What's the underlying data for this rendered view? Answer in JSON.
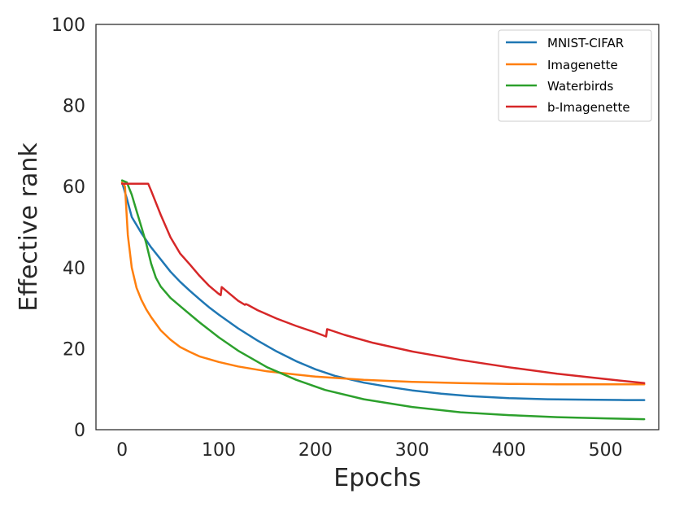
{
  "chart_data": {
    "type": "line",
    "title": "",
    "xlabel": "Epochs",
    "ylabel": "Effective rank",
    "xlim": [
      -27,
      555
    ],
    "ylim": [
      0,
      100
    ],
    "xticks": [
      0,
      100,
      200,
      300,
      400,
      500
    ],
    "yticks": [
      0,
      20,
      40,
      60,
      80,
      100
    ],
    "grid": false,
    "legend_position": "top-right",
    "series": [
      {
        "name": "MNIST-CIFAR",
        "color": "#1f77b4",
        "x": [
          0,
          5,
          10,
          20,
          30,
          40,
          50,
          60,
          70,
          80,
          90,
          100,
          120,
          140,
          160,
          180,
          200,
          220,
          250,
          280,
          300,
          330,
          360,
          400,
          440,
          480,
          520,
          540
        ],
        "y": [
          61,
          57,
          52.5,
          48.5,
          45,
          42,
          39,
          36.5,
          34.3,
          32.2,
          30.2,
          28.4,
          25,
          22,
          19.3,
          16.9,
          14.9,
          13.3,
          11.6,
          10.4,
          9.7,
          8.9,
          8.3,
          7.8,
          7.5,
          7.4,
          7.3,
          7.3
        ]
      },
      {
        "name": "Imagenette",
        "color": "#ff7f0e",
        "x": [
          0,
          3,
          6,
          10,
          15,
          20,
          25,
          30,
          40,
          50,
          60,
          70,
          80,
          100,
          120,
          150,
          180,
          200,
          250,
          300,
          350,
          400,
          450,
          500,
          540
        ],
        "y": [
          61,
          60,
          48,
          40,
          35,
          32,
          29.7,
          27.8,
          24.5,
          22.2,
          20.4,
          19.2,
          18.1,
          16.7,
          15.6,
          14.4,
          13.6,
          13.1,
          12.3,
          11.8,
          11.5,
          11.3,
          11.2,
          11.2,
          11.2
        ]
      },
      {
        "name": "Waterbirds",
        "color": "#2ca02c",
        "x": [
          0,
          5,
          10,
          15,
          20,
          25,
          30,
          35,
          40,
          50,
          60,
          80,
          100,
          120,
          150,
          180,
          210,
          250,
          300,
          350,
          400,
          450,
          500,
          540
        ],
        "y": [
          61.5,
          61,
          58,
          54,
          50,
          46,
          41,
          37.5,
          35.3,
          32.5,
          30.5,
          26.5,
          22.8,
          19.5,
          15.4,
          12.3,
          9.8,
          7.5,
          5.6,
          4.3,
          3.6,
          3.1,
          2.8,
          2.6
        ]
      },
      {
        "name": "b-Imagenette",
        "color": "#d62728",
        "x": [
          0,
          10,
          20,
          27,
          30,
          35,
          40,
          50,
          60,
          70,
          80,
          90,
          100,
          102,
          103,
          110,
          120,
          127,
          128,
          130,
          140,
          160,
          180,
          200,
          211,
          212,
          215,
          230,
          260,
          300,
          350,
          400,
          450,
          500,
          540
        ],
        "y": [
          60.7,
          60.7,
          60.7,
          60.7,
          59,
          56,
          53,
          47.5,
          43.5,
          40.8,
          38,
          35.5,
          33.5,
          33.2,
          35.2,
          33.8,
          31.8,
          30.8,
          31,
          30.8,
          29.5,
          27.4,
          25.6,
          24,
          23,
          24.8,
          24.6,
          23.4,
          21.4,
          19.3,
          17.2,
          15.4,
          13.8,
          12.5,
          11.5
        ]
      }
    ]
  }
}
